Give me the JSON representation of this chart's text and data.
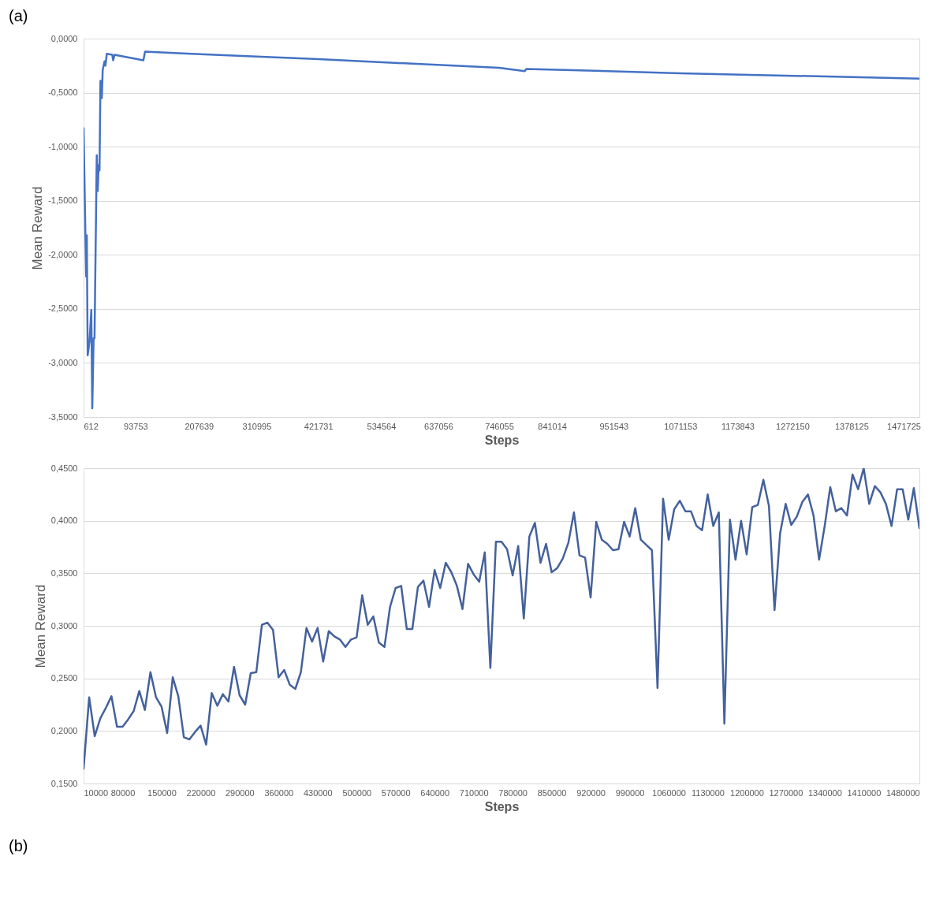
{
  "chart_data": [
    {
      "type": "line",
      "xlabel": "Steps",
      "ylabel": "Mean Reward",
      "annotations": [
        "(a)"
      ],
      "xlim": [
        612,
        1500000
      ],
      "xticks": [
        612,
        93753,
        207639,
        310995,
        421731,
        534564,
        637056,
        746055,
        841014,
        951543,
        1071153,
        1173843,
        1272150,
        1378125,
        1471725
      ],
      "ylim": [
        -3.5,
        0
      ],
      "yticks": [
        {
          "value": 0,
          "label": "0,0000"
        },
        {
          "value": -0.5,
          "label": "-0,5000"
        },
        {
          "value": -1,
          "label": "-1,0000"
        },
        {
          "value": -1.5,
          "label": "-1,5000"
        },
        {
          "value": -2,
          "label": "-2,0000"
        },
        {
          "value": -2.5,
          "label": "-2,5000"
        },
        {
          "value": -3,
          "label": "-3,0000"
        },
        {
          "value": -3.5,
          "label": "-3,5000"
        }
      ],
      "grid": "y",
      "series": [
        {
          "color": "#4472c4",
          "x": [
            612,
            5146,
            6372,
            7965,
            11274,
            14460,
            16176,
            18627,
            20220,
            24264,
            25980,
            27573,
            29166,
            30882,
            33333,
            34926,
            38235,
            39828,
            42279,
            52083,
            53676,
            56127,
            107875,
            110912,
            193973,
            421731,
            746055,
            791994,
            794817,
            1071153,
            1500000
          ],
          "values": [
            -0.83,
            -2.2,
            -1.82,
            -2.93,
            -2.8,
            -2.51,
            -3.42,
            -2.77,
            -2.77,
            -1.08,
            -1.41,
            -1.17,
            -1.22,
            -0.39,
            -0.55,
            -0.29,
            -0.21,
            -0.25,
            -0.14,
            -0.15,
            -0.2,
            -0.15,
            -0.2,
            -0.12,
            -0.14,
            -0.19,
            -0.27,
            -0.3,
            -0.28,
            -0.32,
            -0.37
          ]
        }
      ]
    },
    {
      "type": "line",
      "xlabel": "Steps",
      "ylabel": "Mean Reward",
      "annotations": [
        "(b)"
      ],
      "xlim": [
        10000,
        1510000
      ],
      "xticks": [
        10000,
        80000,
        150000,
        220000,
        290000,
        360000,
        430000,
        500000,
        570000,
        640000,
        710000,
        780000,
        850000,
        920000,
        990000,
        1060000,
        1130000,
        1200000,
        1270000,
        1340000,
        1410000,
        1480000
      ],
      "ylim": [
        0.15,
        0.45
      ],
      "yticks": [
        {
          "value": 0.15,
          "label": "0,1500"
        },
        {
          "value": 0.2,
          "label": "0,2000"
        },
        {
          "value": 0.25,
          "label": "0,2500"
        },
        {
          "value": 0.3,
          "label": "0,3000"
        },
        {
          "value": 0.35,
          "label": "0,3500"
        },
        {
          "value": 0.4,
          "label": "0,4000"
        },
        {
          "value": 0.45,
          "label": "0,4500"
        }
      ],
      "grid": "y",
      "series": [
        {
          "color": "#44619c",
          "x": [
            10000,
            20000,
            30000,
            40000,
            50000,
            60000,
            70000,
            80000,
            90000,
            100000,
            110000,
            120000,
            130000,
            140000,
            150000,
            160000,
            170000,
            180000,
            190000,
            200000,
            210000,
            220000,
            230000,
            240000,
            250000,
            260000,
            270000,
            280000,
            290000,
            300000,
            310000,
            320000,
            330000,
            340000,
            350000,
            360000,
            370000,
            380000,
            390000,
            400000,
            410000,
            420000,
            430000,
            440000,
            450000,
            460000,
            470000,
            480000,
            490000,
            500000,
            510000,
            520000,
            530000,
            540000,
            550000,
            560000,
            570000,
            580000,
            590000,
            600000,
            610000,
            620000,
            630000,
            640000,
            650000,
            660000,
            670000,
            680000,
            690000,
            700000,
            710000,
            720000,
            730000,
            740000,
            750000,
            760000,
            770000,
            780000,
            790000,
            800000,
            810000,
            820000,
            830000,
            840000,
            850000,
            860000,
            870000,
            880000,
            890000,
            900000,
            910000,
            920000,
            930000,
            940000,
            950000,
            960000,
            970000,
            980000,
            990000,
            1000000,
            1010000,
            1020000,
            1030000,
            1040000,
            1050000,
            1060000,
            1070000,
            1080000,
            1090000,
            1100000,
            1110000,
            1120000,
            1130000,
            1140000,
            1150000,
            1160000,
            1170000,
            1180000,
            1190000,
            1200000,
            1210000,
            1220000,
            1230000,
            1240000,
            1250000,
            1260000,
            1270000,
            1280000,
            1290000,
            1300000,
            1310000,
            1320000,
            1330000,
            1340000,
            1350000,
            1360000,
            1370000,
            1380000,
            1390000,
            1400000,
            1410000,
            1420000,
            1430000,
            1440000,
            1450000,
            1460000,
            1470000,
            1480000,
            1490000,
            1500000,
            1510000
          ],
          "values": [
            0.164,
            0.232,
            0.195,
            0.212,
            0.222,
            0.233,
            0.204,
            0.204,
            0.211,
            0.219,
            0.238,
            0.22,
            0.256,
            0.232,
            0.223,
            0.198,
            0.251,
            0.233,
            0.194,
            0.192,
            0.199,
            0.205,
            0.187,
            0.236,
            0.224,
            0.235,
            0.228,
            0.261,
            0.234,
            0.225,
            0.255,
            0.256,
            0.301,
            0.303,
            0.296,
            0.251,
            0.258,
            0.244,
            0.24,
            0.256,
            0.298,
            0.285,
            0.298,
            0.266,
            0.295,
            0.29,
            0.287,
            0.28,
            0.287,
            0.289,
            0.329,
            0.301,
            0.309,
            0.284,
            0.28,
            0.318,
            0.336,
            0.338,
            0.297,
            0.297,
            0.337,
            0.343,
            0.318,
            0.353,
            0.336,
            0.36,
            0.351,
            0.338,
            0.316,
            0.359,
            0.349,
            0.342,
            0.37,
            0.26,
            0.38,
            0.38,
            0.373,
            0.348,
            0.376,
            0.307,
            0.385,
            0.398,
            0.36,
            0.378,
            0.351,
            0.355,
            0.364,
            0.379,
            0.408,
            0.367,
            0.365,
            0.327,
            0.399,
            0.382,
            0.378,
            0.372,
            0.373,
            0.399,
            0.385,
            0.412,
            0.382,
            0.377,
            0.372,
            0.241,
            0.421,
            0.382,
            0.411,
            0.419,
            0.409,
            0.409,
            0.395,
            0.391,
            0.425,
            0.395,
            0.408,
            0.207,
            0.401,
            0.363,
            0.4,
            0.368,
            0.413,
            0.415,
            0.439,
            0.414,
            0.315,
            0.388,
            0.416,
            0.396,
            0.404,
            0.418,
            0.425,
            0.405,
            0.363,
            0.395,
            0.432,
            0.409,
            0.412,
            0.405,
            0.444,
            0.43,
            0.45,
            0.416,
            0.433,
            0.427,
            0.416,
            0.395,
            0.43,
            0.43,
            0.401,
            0.431,
            0.393
          ]
        }
      ]
    }
  ]
}
